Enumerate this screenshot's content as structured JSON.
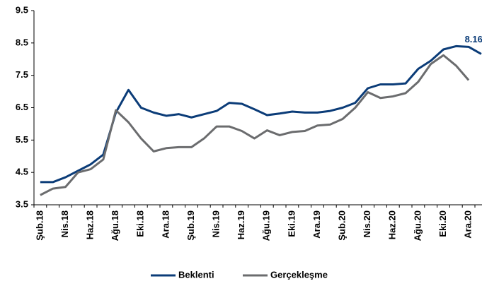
{
  "chart_data": {
    "type": "line",
    "categories": [
      "Şub.18",
      null,
      "Nis.18",
      null,
      "Haz.18",
      null,
      "Ağu.18",
      null,
      "Eki.18",
      null,
      "Ara.18",
      null,
      "Şub.19",
      null,
      "Nis.19",
      null,
      "Haz.19",
      null,
      "Ağu.19",
      null,
      "Eki.19",
      null,
      "Ara.19",
      null,
      "Şub.20",
      null,
      "Nis.20",
      null,
      "Haz.20",
      null,
      "Ağu.20",
      null,
      "Eki.20",
      null,
      "Ara.20",
      null
    ],
    "series": [
      {
        "name": "Beklenti",
        "color": "#0b3c78",
        "label_last": true,
        "values": [
          4.2,
          4.2,
          4.35,
          4.55,
          4.75,
          5.05,
          6.35,
          7.05,
          6.5,
          6.35,
          6.25,
          6.3,
          6.2,
          6.3,
          6.4,
          6.65,
          6.62,
          6.45,
          6.27,
          6.32,
          6.38,
          6.35,
          6.35,
          6.4,
          6.5,
          6.65,
          7.1,
          7.22,
          7.22,
          7.25,
          7.7,
          7.95,
          8.3,
          8.4,
          8.38,
          8.16
        ]
      },
      {
        "name": "Gerçekleşme",
        "color": "#6b6c6e",
        "values": [
          3.8,
          4.0,
          4.05,
          4.5,
          4.6,
          4.9,
          6.42,
          6.05,
          5.55,
          5.15,
          5.25,
          5.28,
          5.28,
          5.55,
          5.92,
          5.92,
          5.78,
          5.55,
          5.8,
          5.65,
          5.75,
          5.78,
          5.95,
          5.98,
          6.15,
          6.5,
          6.98,
          6.8,
          6.85,
          6.95,
          7.3,
          7.85,
          8.12,
          7.8,
          7.35,
          null
        ]
      }
    ],
    "ylim": [
      3.5,
      9.5
    ],
    "yticks": [
      3.5,
      4.5,
      5.5,
      6.5,
      7.5,
      8.5,
      9.5
    ],
    "grid": false,
    "legend": "bottom"
  }
}
